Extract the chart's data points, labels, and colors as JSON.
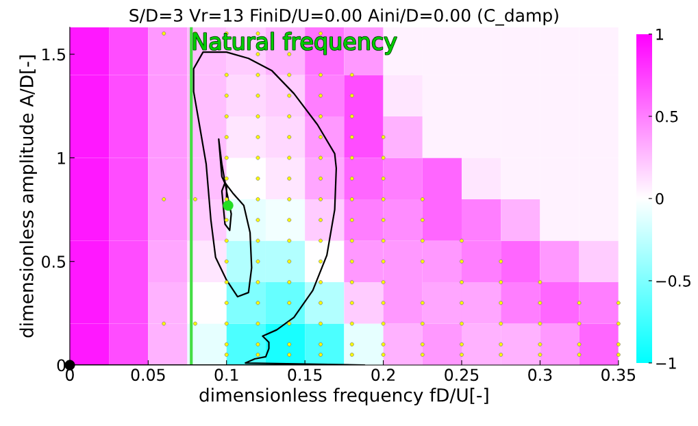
{
  "chart_data": {
    "type": "heatmap",
    "title": "S/D=3 Vr=13 FiniD/U=0.00 Aini/D=0.00 (C_damp)",
    "xlabel": "dimensionless frequency fD/U[-]",
    "ylabel": "dimensionless amplitude A/D[-]",
    "x": [
      0.0125,
      0.0375,
      0.0625,
      0.0875,
      0.1125,
      0.1375,
      0.1625,
      0.1875,
      0.2125,
      0.2375,
      0.2625,
      0.2875,
      0.3125,
      0.3375
    ],
    "y": [
      1.5,
      1.3,
      1.1,
      0.9,
      0.7,
      0.5,
      0.3,
      0.1
    ],
    "cells": [
      [
        0.9,
        0.7,
        0.4,
        0.25,
        0.2,
        0.3,
        0.55,
        0.4,
        0.05,
        0.05,
        0.05,
        0.05,
        0.05,
        0.05
      ],
      [
        0.9,
        0.7,
        0.4,
        0.25,
        0.15,
        0.2,
        0.5,
        0.7,
        0.1,
        0.05,
        0.05,
        0.05,
        0.05,
        0.05
      ],
      [
        0.9,
        0.7,
        0.4,
        0.25,
        0.1,
        0.15,
        0.4,
        0.7,
        0.3,
        0.05,
        0.05,
        0.05,
        0.05,
        0.05
      ],
      [
        0.9,
        0.7,
        0.4,
        0.25,
        0.0,
        0.1,
        0.35,
        0.6,
        0.5,
        0.6,
        0.1,
        0.05,
        0.05,
        0.05
      ],
      [
        0.9,
        0.7,
        0.4,
        0.2,
        -0.1,
        -0.05,
        0.2,
        0.5,
        0.45,
        0.6,
        0.5,
        0.3,
        0.05,
        0.05
      ],
      [
        0.9,
        0.7,
        0.35,
        0.1,
        -0.3,
        -0.3,
        0.0,
        0.4,
        0.4,
        0.4,
        0.5,
        0.6,
        0.4,
        0.2
      ],
      [
        0.9,
        0.7,
        0.3,
        0.0,
        -0.5,
        -0.6,
        -0.3,
        0.2,
        0.4,
        0.35,
        0.35,
        0.5,
        0.6,
        0.5
      ],
      [
        0.9,
        0.7,
        0.3,
        -0.1,
        -0.7,
        -0.9,
        -0.7,
        -0.1,
        0.3,
        0.4,
        0.3,
        0.3,
        0.4,
        0.6
      ]
    ],
    "colors": [
      "#00ffff",
      "#ffffff",
      "#ff00ff"
    ],
    "clim": [
      -1,
      1
    ],
    "cticks": [
      {
        "value": -1,
        "label": "−1"
      },
      {
        "value": -0.5,
        "label": "−0.5"
      },
      0,
      0.5,
      1
    ],
    "xlim": [
      0,
      0.35
    ],
    "xticks": [
      0,
      0.05,
      0.1,
      0.15,
      0.2,
      0.25,
      0.3,
      0.35
    ],
    "ylim": [
      0,
      1.63
    ],
    "yticks": [
      0,
      0.5,
      1,
      1.5
    ],
    "grid": false,
    "ref_lines": [
      {
        "axis": "x",
        "value": 0.0775,
        "label": "Natural frequency",
        "color": "#44dd44"
      }
    ],
    "series": [
      {
        "type": "line",
        "color": "#000000",
        "x": [
          0,
          0.188,
          0.112,
          0.118,
          0.125,
          0.127,
          0.127,
          0.123,
          0.132,
          0.143,
          0.155,
          0.164,
          0.169,
          0.17,
          0.169,
          0.158,
          0.143,
          0.129,
          0.114,
          0.1,
          0.085,
          0.079,
          0.079,
          0.082,
          0.087,
          0.09,
          0.093,
          0.1,
          0.107,
          0.114,
          0.116,
          0.115,
          0.111,
          0.104,
          0.101,
          0.099,
          0.097,
          0.099,
          0.102,
          0.103,
          0.1,
          0.097,
          0.095,
          0.097,
          0.1,
          0.1
        ],
        "values": [
          0,
          0,
          0.01,
          0.03,
          0.04,
          0.08,
          0.11,
          0.14,
          0.17,
          0.23,
          0.36,
          0.53,
          0.75,
          0.95,
          1.02,
          1.16,
          1.31,
          1.42,
          1.48,
          1.51,
          1.51,
          1.43,
          1.32,
          1.19,
          0.97,
          0.7,
          0.52,
          0.41,
          0.33,
          0.35,
          0.47,
          0.64,
          0.77,
          0.83,
          0.86,
          0.88,
          0.84,
          0.68,
          0.65,
          0.73,
          0.84,
          0.97,
          1.09,
          0.91,
          0.86,
          0.76
        ]
      },
      {
        "type": "scatter",
        "color": "#ffff00",
        "x": [
          0.06,
          0.06,
          0.06,
          0.08,
          0.08,
          0.08,
          0.1,
          0.1,
          0.1,
          0.1,
          0.1,
          0.1,
          0.1,
          0.1,
          0.1,
          0.1,
          0.1,
          0.1,
          0.1,
          0.1,
          0.1,
          0.1,
          0.12,
          0.12,
          0.12,
          0.12,
          0.12,
          0.12,
          0.12,
          0.12,
          0.12,
          0.12,
          0.12,
          0.12,
          0.12,
          0.12,
          0.12,
          0.12,
          0.12,
          0.14,
          0.14,
          0.14,
          0.14,
          0.14,
          0.14,
          0.14,
          0.14,
          0.14,
          0.14,
          0.14,
          0.14,
          0.14,
          0.14,
          0.14,
          0.14,
          0.14,
          0.16,
          0.16,
          0.16,
          0.16,
          0.16,
          0.16,
          0.16,
          0.16,
          0.16,
          0.16,
          0.16,
          0.16,
          0.16,
          0.16,
          0.16,
          0.16,
          0.18,
          0.18,
          0.18,
          0.18,
          0.18,
          0.18,
          0.18,
          0.18,
          0.18,
          0.18,
          0.18,
          0.18,
          0.18,
          0.18,
          0.18,
          0.2,
          0.2,
          0.2,
          0.2,
          0.2,
          0.2,
          0.2,
          0.2,
          0.2,
          0.2,
          0.2,
          0.2,
          0.225,
          0.225,
          0.225,
          0.225,
          0.225,
          0.225,
          0.225,
          0.225,
          0.25,
          0.25,
          0.25,
          0.25,
          0.25,
          0.25,
          0.25,
          0.275,
          0.275,
          0.275,
          0.275,
          0.275,
          0.275,
          0.3,
          0.3,
          0.3,
          0.3,
          0.3,
          0.325,
          0.325,
          0.325,
          0.325,
          0.35,
          0.35,
          0.35,
          0.35
        ],
        "values": [
          1.6,
          0.8,
          0.2,
          1.6,
          0.8,
          0.2,
          1.6,
          1.4,
          1.3,
          1.2,
          1.1,
          1.0,
          0.9,
          0.8,
          0.7,
          0.6,
          0.5,
          0.4,
          0.3,
          0.2,
          0.1,
          0.05,
          1.6,
          1.5,
          1.4,
          1.3,
          1.2,
          1.1,
          1.0,
          0.9,
          0.8,
          0.7,
          0.6,
          0.5,
          0.4,
          0.3,
          0.2,
          0.1,
          0.05,
          1.6,
          1.5,
          1.4,
          1.3,
          1.2,
          1.1,
          1.0,
          0.9,
          0.8,
          0.7,
          0.6,
          0.5,
          0.4,
          0.3,
          0.2,
          0.1,
          0.05,
          1.6,
          1.4,
          1.3,
          1.2,
          1.1,
          1.0,
          0.9,
          0.8,
          0.7,
          0.6,
          0.5,
          0.4,
          0.3,
          0.2,
          0.1,
          0.05,
          1.4,
          1.3,
          1.2,
          1.1,
          1.0,
          0.9,
          0.8,
          0.7,
          0.6,
          0.5,
          0.4,
          0.3,
          0.2,
          0.1,
          0.05,
          1.1,
          1.0,
          0.9,
          0.8,
          0.7,
          0.6,
          0.5,
          0.4,
          0.3,
          0.2,
          0.1,
          0.05,
          0.8,
          0.7,
          0.6,
          0.5,
          0.3,
          0.2,
          0.1,
          0.05,
          0.6,
          0.5,
          0.4,
          0.3,
          0.2,
          0.1,
          0.05,
          0.5,
          0.4,
          0.3,
          0.2,
          0.1,
          0.05,
          0.4,
          0.3,
          0.2,
          0.1,
          0.05,
          0.3,
          0.2,
          0.1,
          0.05,
          0.3,
          0.2,
          0.1,
          0.05
        ]
      },
      {
        "type": "scatter",
        "color": "#22dd22",
        "x": [
          0.101
        ],
        "values": [
          0.77
        ]
      },
      {
        "type": "scatter",
        "color": "#000000",
        "x": [
          0
        ],
        "values": [
          0
        ]
      }
    ]
  }
}
